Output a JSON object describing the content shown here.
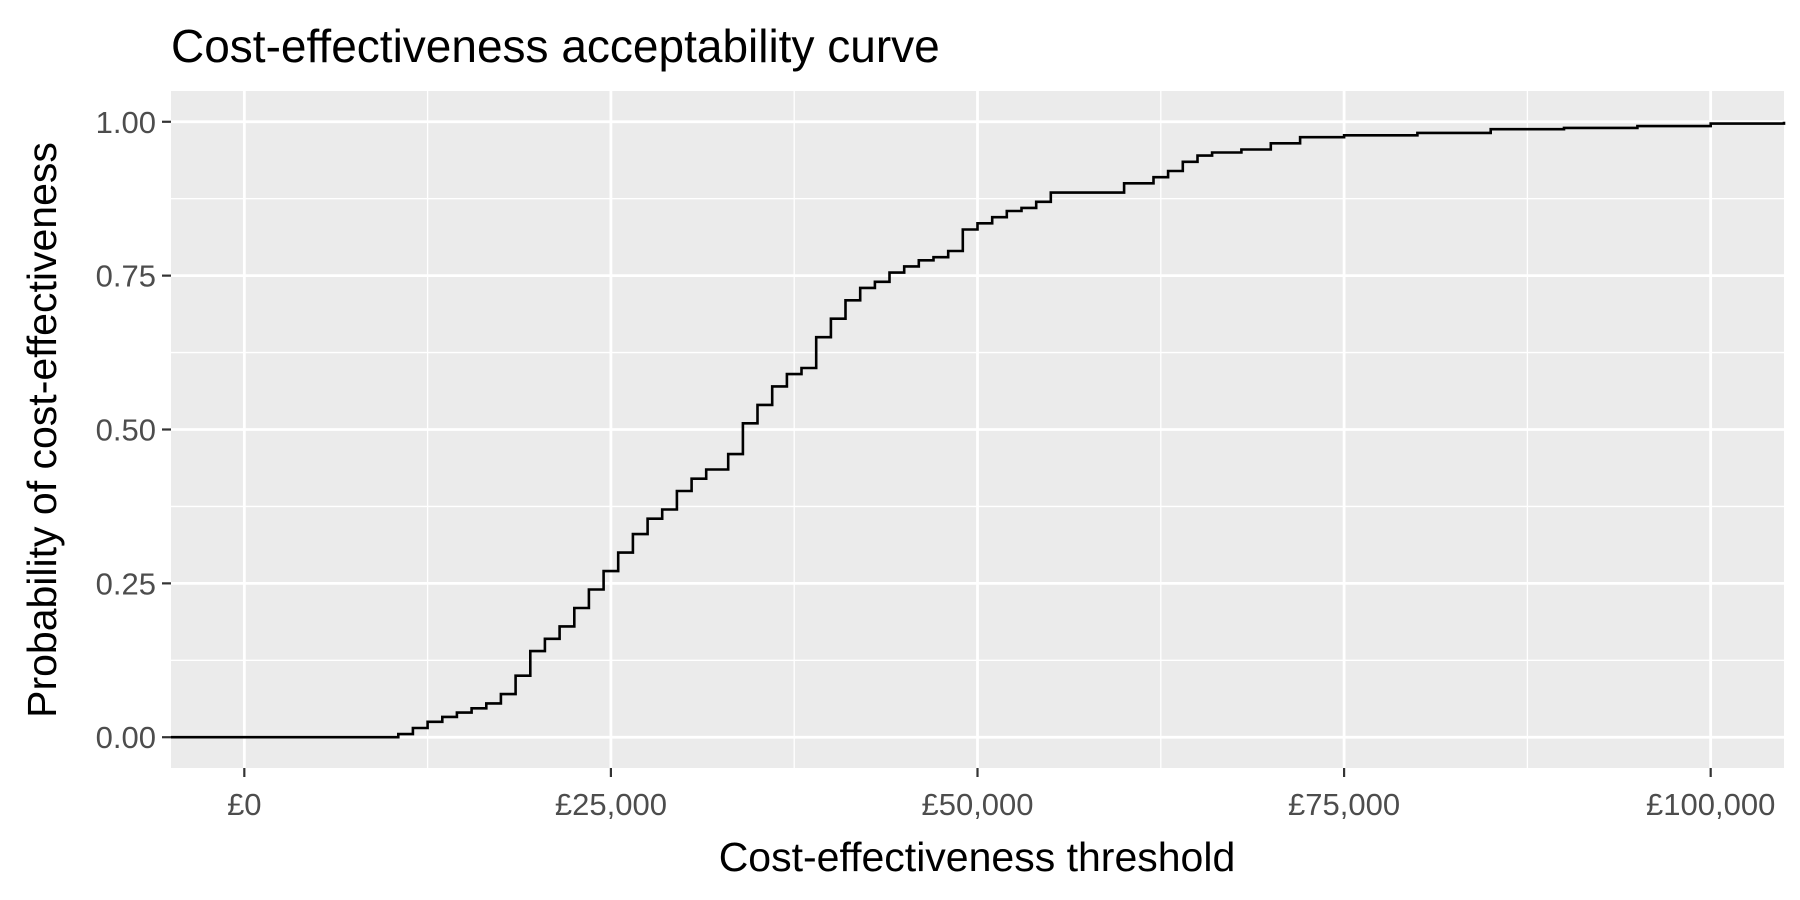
{
  "chart_data": {
    "type": "line",
    "title": "Cost-effectiveness acceptability curve",
    "xlabel": "Cost-effectiveness threshold",
    "ylabel": "Probability of cost-effectiveness",
    "xlim": [
      -5000,
      105000
    ],
    "ylim": [
      -0.05,
      1.05
    ],
    "x_ticks": [
      0,
      25000,
      50000,
      75000,
      100000
    ],
    "x_tick_labels": [
      "£0",
      "£25,000",
      "£50,000",
      "£75,000",
      "£100,000"
    ],
    "y_ticks": [
      0,
      0.25,
      0.5,
      0.75,
      1.0
    ],
    "y_tick_labels": [
      "0.00",
      "0.25",
      "0.50",
      "0.75",
      "1.00"
    ],
    "grid": true,
    "line_color": "#000000",
    "panel_background": "#ebebeb",
    "grid_color": "#ffffff",
    "series": [
      {
        "x": [
          -5000,
          9500,
          10500,
          11500,
          12500,
          13500,
          14500,
          15500,
          16500,
          17500,
          18500,
          19500,
          20500,
          21500,
          22500,
          23500,
          24500,
          25500,
          26500,
          27500,
          28500,
          29500,
          30500,
          31500,
          32500,
          33000,
          34000,
          35000,
          36000,
          37000,
          38000,
          39000,
          40000,
          41000,
          42000,
          43000,
          44000,
          45000,
          46000,
          47000,
          48000,
          49000,
          50000,
          51000,
          52000,
          53000,
          54000,
          55000,
          56000,
          58000,
          60000,
          62000,
          63000,
          64000,
          65000,
          66000,
          68000,
          70000,
          72000,
          75000,
          80000,
          85000,
          90000,
          95000,
          100000,
          105000
        ],
        "y": [
          0.0,
          0.0,
          0.005,
          0.015,
          0.025,
          0.033,
          0.04,
          0.047,
          0.055,
          0.07,
          0.1,
          0.14,
          0.16,
          0.18,
          0.21,
          0.24,
          0.27,
          0.3,
          0.33,
          0.355,
          0.37,
          0.4,
          0.42,
          0.435,
          0.435,
          0.46,
          0.51,
          0.54,
          0.57,
          0.59,
          0.6,
          0.65,
          0.68,
          0.71,
          0.73,
          0.74,
          0.755,
          0.765,
          0.775,
          0.78,
          0.79,
          0.825,
          0.835,
          0.845,
          0.855,
          0.86,
          0.87,
          0.885,
          0.885,
          0.885,
          0.9,
          0.91,
          0.92,
          0.935,
          0.945,
          0.95,
          0.955,
          0.965,
          0.975,
          0.978,
          0.982,
          0.988,
          0.99,
          0.993,
          0.997,
          1.0
        ]
      }
    ]
  }
}
